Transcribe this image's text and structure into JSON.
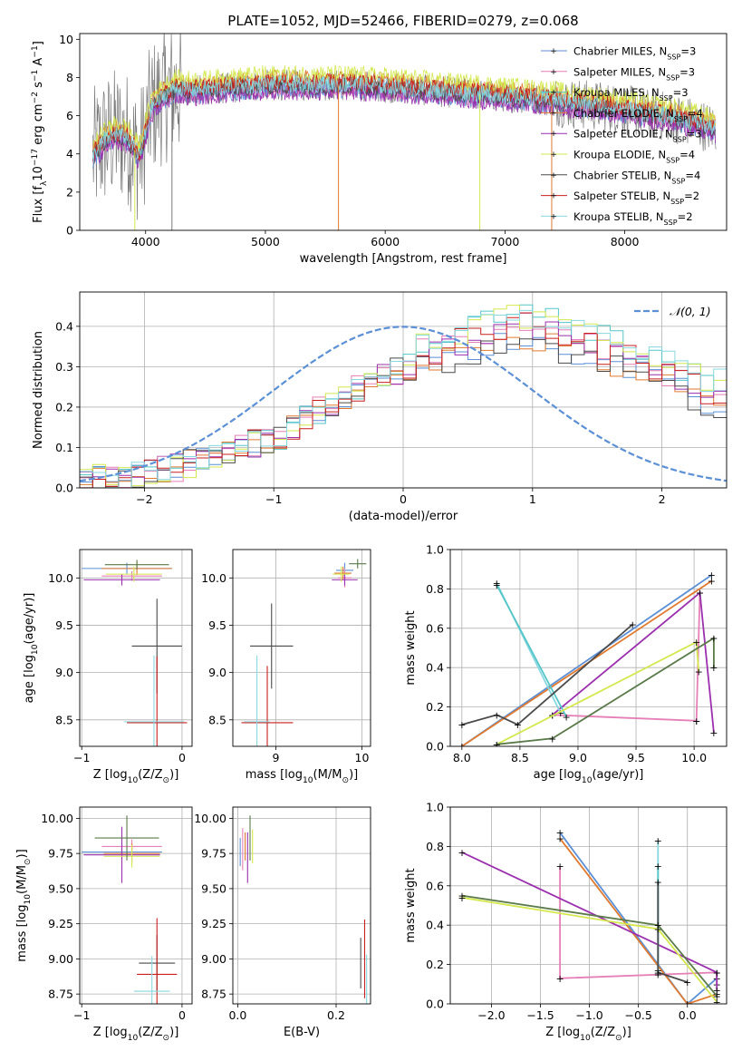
{
  "figure_title": "PLATE=1052, MJD=52466, FIBERID=0279, z=0.068",
  "palette": {
    "c_miles": "#5b8fd6",
    "s_miles": "#e67fb7",
    "k_miles": "#54c5c8",
    "c_elodie": "#e07a30",
    "s_elodie": "#9b2fae",
    "k_elodie": "#d4e84e",
    "c_stelib": "#4a4a4a",
    "s_stelib": "#c91f1f",
    "k_stelib": "#88d8e0",
    "gray": "#7a7a7a",
    "olive": "#5a7a4a"
  },
  "chart_data": [
    {
      "id": "spectrum",
      "type": "line",
      "title": "PLATE=1052, MJD=52466, FIBERID=0279, z=0.068",
      "xlabel": "wavelength [Angstrom, rest frame]",
      "ylabel": "Flux [f",
      "ylabel_sub": "λ",
      "ylabel_tail": "10",
      "ylabel_sup1": "−17",
      "ylabel_mid": " erg cm",
      "ylabel_sup2": "−2",
      "ylabel_mid2": " s",
      "ylabel_sup3": "−1",
      "ylabel_end": " A",
      "ylabel_sup4": "−1",
      "ylabel_close": "]",
      "xlim": [
        3450,
        8850
      ],
      "ylim": [
        0,
        10.3
      ],
      "xticks": [
        4000,
        5000,
        6000,
        7000,
        8000
      ],
      "yticks": [
        0,
        2,
        4,
        6,
        8,
        10
      ],
      "legend": "top-right",
      "legend_entries": [
        {
          "label": "Chabrier MILES, N",
          "sub": "SSP",
          "tail": "=3",
          "color": "#5b8fd6"
        },
        {
          "label": "Salpeter MILES, N",
          "sub": "SSP",
          "tail": "=3",
          "color": "#e67fb7"
        },
        {
          "label": "Kroupa MILES, N",
          "sub": "SSP",
          "tail": "=3",
          "color": "#54c5c8"
        },
        {
          "label": "Chabrier ELODIE, N",
          "sub": "SSP",
          "tail": "=4",
          "color": "#e07a30"
        },
        {
          "label": "Salpeter ELODIE, N",
          "sub": "SSP",
          "tail": "=3",
          "color": "#9b2fae"
        },
        {
          "label": "Kroupa ELODIE, N",
          "sub": "SSP",
          "tail": "=4",
          "color": "#d4e84e"
        },
        {
          "label": "Chabrier STELIB, N",
          "sub": "SSP",
          "tail": "=4",
          "color": "#4a4a4a"
        },
        {
          "label": "Salpeter STELIB, N",
          "sub": "SSP",
          "tail": "=2",
          "color": "#c91f1f"
        },
        {
          "label": "Kroupa STELIB, N",
          "sub": "SSP",
          "tail": "=2",
          "color": "#88d8e0"
        }
      ],
      "continuum": {
        "x": [
          3550,
          3650,
          3750,
          3850,
          3950,
          4050,
          4150,
          4250,
          4400,
          4600,
          4800,
          5000,
          5200,
          5400,
          5600,
          5800,
          6000,
          6200,
          6400,
          6600,
          6800,
          7000,
          7200,
          7400,
          7600,
          7800,
          8000,
          8200,
          8400,
          8600,
          8750
        ],
        "y": [
          3.8,
          4.6,
          5.0,
          4.8,
          3.8,
          6.4,
          7.0,
          7.4,
          7.3,
          7.4,
          7.5,
          7.6,
          7.6,
          7.6,
          7.6,
          7.55,
          7.5,
          7.4,
          7.3,
          7.2,
          7.1,
          7.0,
          6.9,
          6.8,
          6.6,
          6.5,
          6.3,
          6.1,
          5.9,
          5.6,
          5.3
        ]
      },
      "model_offsets": [
        -0.25,
        -0.15,
        0.1,
        0.35,
        -0.35,
        0.6,
        -0.05,
        0.15,
        0.05
      ],
      "noise_amplitude": 3.0,
      "spikes": [
        {
          "x": 5610,
          "y": 0.0,
          "color": "#e07a30"
        },
        {
          "x": 6790,
          "y": 0.0,
          "color": "#d4e84e"
        },
        {
          "x": 7390,
          "y": 0.0,
          "color": "#e07a30"
        },
        {
          "x": 3910,
          "y": 0.0,
          "color": "#d4e84e"
        },
        {
          "x": 4220,
          "y": 0.0,
          "color": "#7a7a7a"
        }
      ]
    },
    {
      "id": "residuals",
      "type": "bar",
      "xlabel": "(data-model)/error",
      "ylabel": "Normed distribution",
      "xlim": [
        -2.5,
        2.5
      ],
      "ylim": [
        0,
        0.485
      ],
      "xticks": [
        -2,
        -1,
        0,
        1,
        2
      ],
      "xtick_labels": [
        "−2",
        "−1",
        "0",
        "1",
        "2"
      ],
      "yticks": [
        0.0,
        0.1,
        0.2,
        0.3,
        0.4
      ],
      "ytick_labels": [
        "0.0",
        "0.1",
        "0.2",
        "0.3",
        "0.4"
      ],
      "grid": true,
      "legend": "top-right",
      "gaussian_label": "𝒩(0, 1)",
      "gaussian": {
        "mean": 0,
        "sigma": 1,
        "color": "#5b8fd6"
      },
      "bins_start": -2.5,
      "bin_width": 0.1,
      "base_hist": [
        0.02,
        0.025,
        0.03,
        0.03,
        0.035,
        0.04,
        0.045,
        0.05,
        0.06,
        0.07,
        0.08,
        0.09,
        0.1,
        0.11,
        0.12,
        0.13,
        0.15,
        0.17,
        0.19,
        0.21,
        0.23,
        0.25,
        0.27,
        0.28,
        0.29,
        0.3,
        0.31,
        0.31,
        0.32,
        0.33,
        0.34,
        0.35,
        0.36,
        0.37,
        0.37,
        0.36,
        0.35,
        0.34,
        0.33,
        0.32,
        0.31,
        0.3,
        0.29,
        0.28,
        0.26,
        0.25,
        0.24,
        0.22,
        0.21,
        0.2
      ],
      "series_count": 9
    },
    {
      "id": "age-vs-Z",
      "type": "scatter",
      "xlabel": "Z [log",
      "xlabel_sub": "10",
      "xlabel_tail": "(Z/Z",
      "xlabel_sub2": "⊙",
      "xlabel_close": ")]",
      "ylabel": "age  [log",
      "ylabel_sub": "10",
      "ylabel_tail": "(age/yr)]",
      "xlim": [
        -1.02,
        0.1
      ],
      "ylim": [
        8.22,
        10.3
      ],
      "xticks": [
        -1,
        0
      ],
      "xtick_labels": [
        "−1",
        "0"
      ],
      "yticks": [
        8.5,
        9.0,
        9.5,
        10.0
      ],
      "ytick_labels": [
        "8.5",
        "9.0",
        "9.5",
        "10.0"
      ],
      "points": [
        {
          "x": -0.55,
          "y": 10.1,
          "xerr": 0.45,
          "yerr": 0.06,
          "color": "#5b8fd6"
        },
        {
          "x": -0.5,
          "y": 10.02,
          "xerr": 0.3,
          "yerr": 0.05,
          "color": "#e67fb7"
        },
        {
          "x": -0.45,
          "y": 10.1,
          "xerr": 0.35,
          "yerr": 0.07,
          "color": "#e07a30"
        },
        {
          "x": -0.6,
          "y": 9.98,
          "xerr": 0.38,
          "yerr": 0.06,
          "color": "#9b2fae"
        },
        {
          "x": -0.48,
          "y": 10.04,
          "xerr": 0.28,
          "yerr": 0.08,
          "color": "#d4e84e"
        },
        {
          "x": -0.45,
          "y": 10.14,
          "xerr": 0.32,
          "yerr": 0.05,
          "color": "#5a7a4a"
        },
        {
          "x": -0.25,
          "y": 9.28,
          "xerr": 0.25,
          "yerr": 0.5,
          "color": "#4a4a4a"
        },
        {
          "x": -0.25,
          "y": 8.47,
          "xerr": 0.3,
          "yerr": 0.7,
          "color": "#c91f1f"
        },
        {
          "x": -0.28,
          "y": 8.48,
          "xerr": 0.3,
          "yerr": 0.7,
          "color": "#88d8e0"
        }
      ]
    },
    {
      "id": "age-vs-mass",
      "type": "scatter",
      "xlabel": "mass [log",
      "xlabel_sub": "10",
      "xlabel_tail": "(M/M",
      "xlabel_sub2": "⊙",
      "xlabel_close": ")]",
      "xlim": [
        8.5,
        10.1
      ],
      "ylim": [
        8.22,
        10.3
      ],
      "xticks": [
        9,
        10
      ],
      "xtick_labels": [
        "9",
        "10"
      ],
      "yticks": [
        8.5,
        9.0,
        9.5,
        10.0
      ],
      "ytick_labels": [
        "8.5",
        "9.0",
        "9.5",
        "10.0"
      ],
      "points": [
        {
          "x": 9.8,
          "y": 10.08,
          "xerr": 0.1,
          "yerr": 0.08,
          "color": "#5b8fd6"
        },
        {
          "x": 9.8,
          "y": 10.0,
          "xerr": 0.08,
          "yerr": 0.1,
          "color": "#e67fb7"
        },
        {
          "x": 9.78,
          "y": 10.05,
          "xerr": 0.1,
          "yerr": 0.07,
          "color": "#e07a30"
        },
        {
          "x": 9.8,
          "y": 9.98,
          "xerr": 0.15,
          "yerr": 0.06,
          "color": "#9b2fae"
        },
        {
          "x": 9.76,
          "y": 10.04,
          "xerr": 0.1,
          "yerr": 0.08,
          "color": "#d4e84e"
        },
        {
          "x": 9.95,
          "y": 10.15,
          "xerr": 0.1,
          "yerr": 0.05,
          "color": "#5a7a4a"
        },
        {
          "x": 8.95,
          "y": 9.28,
          "xerr": 0.25,
          "yerr": 0.45,
          "color": "#4a4a4a"
        },
        {
          "x": 8.9,
          "y": 8.47,
          "xerr": 0.3,
          "yerr": 0.6,
          "color": "#c91f1f"
        },
        {
          "x": 8.78,
          "y": 8.48,
          "xerr": 0.15,
          "yerr": 0.7,
          "color": "#88d8e0"
        }
      ]
    },
    {
      "id": "massweight-vs-age",
      "type": "line",
      "xlabel": "age  [log",
      "xlabel_sub": "10",
      "xlabel_tail": "(age/yr)]",
      "ylabel": "mass weight",
      "xlim": [
        7.9,
        10.28
      ],
      "ylim": [
        0,
        1.0
      ],
      "xticks": [
        8.0,
        8.5,
        9.0,
        9.5,
        10.0
      ],
      "xtick_labels": [
        "8.0",
        "8.5",
        "9.0",
        "9.5",
        "10.0"
      ],
      "yticks": [
        0.0,
        0.2,
        0.4,
        0.6,
        0.8,
        1.0
      ],
      "ytick_labels": [
        "0.0",
        "0.2",
        "0.4",
        "0.6",
        "0.8",
        "1.0"
      ],
      "series": [
        {
          "color": "#5b8fd6",
          "x": [
            8.0,
            10.15
          ],
          "y": [
            0.0,
            0.87
          ]
        },
        {
          "color": "#e07a30",
          "x": [
            8.0,
            10.15
          ],
          "y": [
            0.0,
            0.84
          ]
        },
        {
          "color": "#e67fb7",
          "x": [
            8.78,
            10.02
          ],
          "y": [
            0.16,
            0.13
          ]
        },
        {
          "color": "#e67fb7",
          "x": [
            10.02,
            10.05
          ],
          "y": [
            0.13,
            0.78
          ]
        },
        {
          "color": "#9b2fae",
          "x": [
            8.78,
            10.05,
            10.17
          ],
          "y": [
            0.16,
            0.78,
            0.07
          ]
        },
        {
          "color": "#88d8e0",
          "x": [
            8.3,
            8.85
          ],
          "y": [
            0.83,
            0.17
          ]
        },
        {
          "color": "#54c5c8",
          "x": [
            8.3,
            8.9
          ],
          "y": [
            0.82,
            0.15
          ]
        },
        {
          "color": "#4a4a4a",
          "x": [
            8.0,
            8.3,
            8.48,
            9.47
          ],
          "y": [
            0.11,
            0.16,
            0.11,
            0.62
          ]
        },
        {
          "color": "#d4e84e",
          "x": [
            8.3,
            10.02,
            10.04
          ],
          "y": [
            0.01,
            0.53,
            0.38
          ]
        },
        {
          "color": "#5a7a4a",
          "x": [
            8.3,
            8.78,
            10.17,
            10.17
          ],
          "y": [
            0.01,
            0.04,
            0.55,
            0.4
          ]
        }
      ]
    },
    {
      "id": "mass-vs-Z",
      "type": "scatter",
      "xlabel": "Z [log",
      "xlabel_sub": "10",
      "xlabel_tail": "(Z/Z",
      "xlabel_sub2": "⊙",
      "xlabel_close": ")]",
      "ylabel": "mass [log",
      "ylabel_sub": "10",
      "ylabel_tail": "(M/M",
      "ylabel_sub2": "⊙",
      "ylabel_close": ")]",
      "xlim": [
        -1.02,
        0.1
      ],
      "ylim": [
        8.68,
        10.08
      ],
      "xticks": [
        -1,
        0
      ],
      "xtick_labels": [
        "−1",
        "0"
      ],
      "yticks": [
        8.75,
        9.0,
        9.25,
        9.5,
        9.75,
        10.0
      ],
      "ytick_labels": [
        "8.75",
        "9.00",
        "9.25",
        "9.50",
        "9.75",
        "10.00"
      ],
      "points": [
        {
          "x": -0.6,
          "y": 9.76,
          "xerr": 0.4,
          "yerr": 0.06,
          "color": "#5b8fd6"
        },
        {
          "x": -0.5,
          "y": 9.8,
          "xerr": 0.3,
          "yerr": 0.05,
          "color": "#e67fb7"
        },
        {
          "x": -0.5,
          "y": 9.75,
          "xerr": 0.28,
          "yerr": 0.07,
          "color": "#e07a30"
        },
        {
          "x": -0.6,
          "y": 9.74,
          "xerr": 0.38,
          "yerr": 0.2,
          "color": "#9b2fae"
        },
        {
          "x": -0.5,
          "y": 9.73,
          "xerr": 0.28,
          "yerr": 0.08,
          "color": "#d4e84e"
        },
        {
          "x": -0.55,
          "y": 9.86,
          "xerr": 0.32,
          "yerr": 0.16,
          "color": "#5a7a4a"
        },
        {
          "x": -0.25,
          "y": 8.97,
          "xerr": 0.18,
          "yerr": 0.2,
          "color": "#4a4a4a"
        },
        {
          "x": -0.25,
          "y": 8.89,
          "xerr": 0.2,
          "yerr": 0.4,
          "color": "#c91f1f"
        },
        {
          "x": -0.3,
          "y": 8.77,
          "xerr": 0.18,
          "yerr": 0.25,
          "color": "#88d8e0"
        }
      ]
    },
    {
      "id": "mass-vs-ebv",
      "type": "scatter",
      "xlabel": "E(B-V)",
      "xlim": [
        -0.01,
        0.27
      ],
      "ylim": [
        8.68,
        10.08
      ],
      "xticks": [
        0.0,
        0.2
      ],
      "xtick_labels": [
        "0.0",
        "0.2"
      ],
      "yticks": [
        8.75,
        9.0,
        9.25,
        9.5,
        9.75,
        10.0
      ],
      "ytick_labels": [
        "8.75",
        "9.00",
        "9.25",
        "9.50",
        "9.75",
        "10.00"
      ],
      "points": [
        {
          "x": 0.01,
          "y": 9.78,
          "xerr": 0.0,
          "yerr": 0.15,
          "color": "#e67fb7"
        },
        {
          "x": 0.015,
          "y": 9.8,
          "xerr": 0.0,
          "yerr": 0.1,
          "color": "#e07a30"
        },
        {
          "x": 0.02,
          "y": 9.72,
          "xerr": 0.0,
          "yerr": 0.18,
          "color": "#9b2fae"
        },
        {
          "x": 0.03,
          "y": 9.8,
          "xerr": 0.0,
          "yerr": 0.12,
          "color": "#d4e84e"
        },
        {
          "x": 0.025,
          "y": 9.86,
          "xerr": 0.0,
          "yerr": 0.16,
          "color": "#5a7a4a"
        },
        {
          "x": 0.005,
          "y": 9.76,
          "xerr": 0.0,
          "yerr": 0.1,
          "color": "#5b8fd6"
        },
        {
          "x": 0.25,
          "y": 8.97,
          "xerr": 0.0,
          "yerr": 0.18,
          "color": "#4a4a4a"
        },
        {
          "x": 0.258,
          "y": 9.0,
          "xerr": 0.0,
          "yerr": 0.28,
          "color": "#c91f1f"
        },
        {
          "x": 0.262,
          "y": 8.85,
          "xerr": 0.0,
          "yerr": 0.18,
          "color": "#88d8e0"
        }
      ]
    },
    {
      "id": "massweight-vs-Z",
      "type": "line",
      "xlabel": "Z [log",
      "xlabel_sub": "10",
      "xlabel_tail": "(Z/Z",
      "xlabel_sub2": "⊙",
      "xlabel_close": ")]",
      "ylabel": "mass weight",
      "xlim": [
        -2.42,
        0.4
      ],
      "ylim": [
        0,
        1.0
      ],
      "xticks": [
        -2.0,
        -1.5,
        -1.0,
        -0.5,
        0.0
      ],
      "xtick_labels": [
        "−2.0",
        "−1.5",
        "−1.0",
        "−0.5",
        "0.0"
      ],
      "yticks": [
        0.0,
        0.2,
        0.4,
        0.6,
        0.8,
        1.0
      ],
      "ytick_labels": [
        "0.0",
        "0.2",
        "0.4",
        "0.6",
        "0.8",
        "1.0"
      ],
      "series": [
        {
          "color": "#5b8fd6",
          "x": [
            -1.3,
            0.0,
            0.3
          ],
          "y": [
            0.87,
            0.0,
            0.13
          ]
        },
        {
          "color": "#e07a30",
          "x": [
            -1.3,
            0.0,
            0.3
          ],
          "y": [
            0.84,
            0.0,
            0.05
          ]
        },
        {
          "color": "#e67fb7",
          "x": [
            -1.3,
            -1.3,
            0.3,
            0.3
          ],
          "y": [
            0.7,
            0.13,
            0.16,
            0.1
          ]
        },
        {
          "color": "#9b2fae",
          "x": [
            -2.3,
            0.3,
            0.3
          ],
          "y": [
            0.77,
            0.16,
            0.07
          ]
        },
        {
          "color": "#88d8e0",
          "x": [
            -0.3,
            -0.3
          ],
          "y": [
            0.83,
            0.17
          ]
        },
        {
          "color": "#54c5c8",
          "x": [
            -0.3,
            -0.3
          ],
          "y": [
            0.7,
            0.15
          ]
        },
        {
          "color": "#4a4a4a",
          "x": [
            -0.3,
            -0.3,
            0.0
          ],
          "y": [
            0.62,
            0.16,
            0.11
          ]
        },
        {
          "color": "#d4e84e",
          "x": [
            -2.3,
            -0.3,
            0.3
          ],
          "y": [
            0.54,
            0.38,
            0.01
          ]
        },
        {
          "color": "#5a7a4a",
          "x": [
            -2.3,
            -0.3,
            0.3
          ],
          "y": [
            0.55,
            0.4,
            0.04
          ]
        }
      ]
    }
  ]
}
